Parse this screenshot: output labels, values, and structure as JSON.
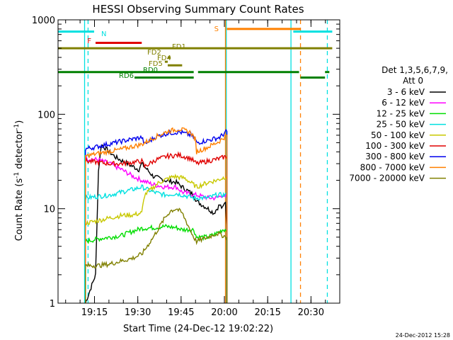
{
  "chart_data": {
    "type": "line",
    "title": "HESSI Observing Summary Count Rates",
    "xlabel": "Start Time (24-Dec-12 19:02:22)",
    "ylabel_main": "Count Rate (s",
    "ylabel_sup1": "-1",
    "ylabel_mid": " detector",
    "ylabel_sup2": "-1",
    "ylabel_end": ")",
    "y_scale": "log",
    "ylim": [
      1,
      1000
    ],
    "xlim_minutes_after_start": [
      0,
      97.6
    ],
    "x_ticks": [
      "19:15",
      "19:30",
      "19:45",
      "20:00",
      "20:15",
      "20:30"
    ],
    "y_ticks": [
      "1",
      "10",
      "100",
      "1000"
    ],
    "legend": {
      "header1": "Det 1,3,5,6,7,9,",
      "header2": "Att 0",
      "placement": "right",
      "entries": [
        {
          "label": "3 - 6 keV",
          "color": "#000000"
        },
        {
          "label": "6 - 12 keV",
          "color": "#ff00ff"
        },
        {
          "label": "12 - 25 keV",
          "color": "#00dd00"
        },
        {
          "label": "25 - 50 keV",
          "color": "#00e0e0"
        },
        {
          "label": "50 - 100 keV",
          "color": "#c8c800"
        },
        {
          "label": "100 - 300 keV",
          "color": "#e00000"
        },
        {
          "label": "300 - 800 keV",
          "color": "#0000ee"
        },
        {
          "label": "800 - 7000 keV",
          "color": "#ff8000"
        },
        {
          "label": "7000 - 20000 keV",
          "color": "#808000"
        }
      ]
    },
    "flags": [
      {
        "label": "N",
        "color": "#00e0e0",
        "level": 750,
        "segments": [
          [
            0,
            12.5
          ],
          [
            81.5,
            95
          ]
        ]
      },
      {
        "label": "F",
        "color": "#e00000",
        "level": 570,
        "segments": [
          [
            13,
            29
          ]
        ]
      },
      {
        "label": "S",
        "color": "#ff8000",
        "level": 800,
        "segments": [
          [
            58.5,
            84
          ]
        ]
      },
      {
        "label": "FD1",
        "color": "#808000",
        "level": 500,
        "segments": [
          [
            0,
            95
          ]
        ]
      },
      {
        "label": "FD2",
        "color": "#808000",
        "level": 400,
        "segments": [
          [
            38,
            39
          ]
        ]
      },
      {
        "label": "FD4",
        "color": "#808000",
        "level": 360,
        "segments": [
          [
            37,
            38
          ]
        ]
      },
      {
        "label": "FD5",
        "color": "#808000",
        "level": 330,
        "segments": [
          [
            38,
            43
          ]
        ]
      },
      {
        "label": "RD0",
        "color": "#008000",
        "level": 280,
        "segments": [
          [
            0,
            47
          ],
          [
            48.5,
            83.5
          ],
          [
            92.5,
            94
          ]
        ]
      },
      {
        "label": "RD6",
        "color": "#008000",
        "level": 245,
        "segments": [
          [
            26.5,
            47
          ],
          [
            84,
            92.5
          ]
        ]
      }
    ],
    "vertical_markers": [
      {
        "time": 9.2,
        "color": "#00e0e0",
        "style": "solid"
      },
      {
        "time": 10.4,
        "color": "#00e0e0",
        "style": "dashed"
      },
      {
        "time": 58.3,
        "color": "#00e0e0",
        "style": "solid"
      },
      {
        "time": 58.0,
        "color": "#ff8000",
        "style": "solid"
      },
      {
        "time": 80.7,
        "color": "#00e0e0",
        "style": "solid"
      },
      {
        "time": 84.0,
        "color": "#ff8000",
        "style": "dashed"
      },
      {
        "time": 93.3,
        "color": "#00e0e0",
        "style": "dashed"
      }
    ],
    "series": [
      {
        "name": "3 - 6 keV",
        "color": "#000000",
        "x": [
          9.5,
          13,
          14,
          15,
          17,
          20,
          24,
          28,
          29,
          33,
          37,
          41,
          43,
          47,
          48,
          52,
          54,
          56,
          57,
          58,
          58.5
        ],
        "y": [
          1.0,
          2.0,
          25,
          48,
          42,
          35,
          30,
          26,
          30,
          22,
          20,
          19,
          17,
          14,
          12,
          10,
          9,
          11,
          10,
          12,
          6
        ]
      },
      {
        "name": "6 - 12 keV",
        "color": "#ff00ff",
        "x": [
          9.5,
          14,
          18,
          22,
          26,
          29,
          33,
          37,
          41,
          43,
          47,
          48,
          52,
          55,
          57,
          58,
          58.5
        ],
        "y": [
          34,
          33,
          30,
          26,
          22,
          20,
          18,
          17,
          17,
          15,
          14,
          14,
          13,
          13,
          14,
          13,
          15
        ]
      },
      {
        "name": "12 - 25 keV",
        "color": "#00dd00",
        "x": [
          9.5,
          14,
          18,
          22,
          26,
          29,
          33,
          37,
          41,
          43,
          47,
          48,
          52,
          55,
          57,
          58.5
        ],
        "y": [
          4.5,
          4.8,
          5,
          5.2,
          5.8,
          6.2,
          6.3,
          6.5,
          6.3,
          6,
          6,
          5,
          5,
          5.5,
          6,
          6
        ]
      },
      {
        "name": "25 - 50 keV",
        "color": "#00e0e0",
        "x": [
          9.5,
          14,
          18,
          22,
          26,
          29,
          33,
          37,
          41,
          43,
          47,
          48,
          52,
          55,
          57,
          58.5
        ],
        "y": [
          13,
          13.5,
          14,
          15,
          16,
          17,
          15,
          14,
          14.5,
          14,
          13,
          13,
          13,
          14,
          14,
          14
        ]
      },
      {
        "name": "50 - 100 keV",
        "color": "#c8c800",
        "x": [
          9.5,
          14,
          18,
          22,
          26,
          29,
          30,
          35,
          40,
          44,
          48,
          52,
          55,
          58.5
        ],
        "y": [
          7,
          7.5,
          8,
          8.5,
          8.6,
          9,
          14,
          19,
          22,
          21,
          17,
          19,
          20,
          22
        ]
      },
      {
        "name": "100 - 300 keV",
        "color": "#e00000",
        "x": [
          9.5,
          14,
          18,
          22,
          26,
          29,
          30,
          34,
          38,
          42,
          46,
          48,
          52,
          56,
          58.5
        ],
        "y": [
          32,
          31,
          30,
          30,
          31,
          32,
          28,
          33,
          36,
          37,
          34,
          30,
          32,
          34,
          36
        ]
      },
      {
        "name": "300 - 800 keV",
        "color": "#0000ee",
        "x": [
          9.5,
          13,
          17,
          21,
          25,
          29,
          30,
          34,
          38,
          42,
          46,
          47.5,
          48,
          52,
          56,
          58.5
        ],
        "y": [
          43,
          45,
          48,
          51,
          54,
          57,
          48,
          58,
          63,
          65,
          60,
          55,
          50,
          53,
          57,
          66
        ]
      },
      {
        "name": "800 - 7000 keV",
        "color": "#ff8000",
        "x": [
          9.5,
          13,
          17,
          21,
          25,
          29,
          30,
          34,
          38,
          42,
          46,
          47.5,
          48,
          52,
          56,
          58.5
        ],
        "y": [
          36,
          38,
          40,
          42,
          45,
          48,
          50,
          58,
          66,
          70,
          64,
          55,
          40,
          45,
          52,
          60
        ]
      },
      {
        "name": "7000 - 20000 keV",
        "color": "#808000",
        "x": [
          9.5,
          14,
          18,
          22,
          26,
          29,
          33,
          37,
          39,
          41,
          43,
          47,
          48,
          52,
          55,
          58.5
        ],
        "y": [
          2.5,
          2.5,
          2.6,
          2.8,
          3,
          3.3,
          5,
          8,
          9.5,
          10,
          9,
          5,
          4.5,
          5,
          5.5,
          5
        ]
      }
    ]
  },
  "footer": {
    "date_stamp": "24-Dec-2012 15:28"
  }
}
